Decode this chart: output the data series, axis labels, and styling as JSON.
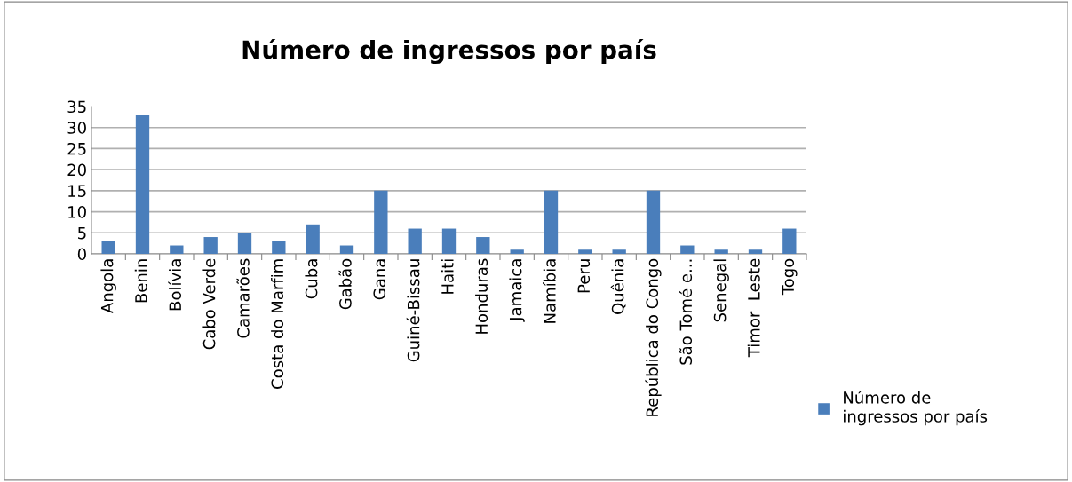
{
  "chart_data": {
    "type": "bar",
    "title": "Número de ingressos por país",
    "categories": [
      "Angola",
      "Benin",
      "Bolívia",
      "Cabo Verde",
      "Camarões",
      "Costa do Marfim",
      "Cuba",
      "Gabão",
      "Gana",
      "Guiné-Bissau",
      "Haiti",
      "Honduras",
      "Jamaica",
      "Namíbia",
      "Peru",
      "Quênia",
      "República do Congo",
      "São Tomé e...",
      "Senegal",
      "Timor  Leste",
      "Togo"
    ],
    "series": [
      {
        "name": "Número de ingressos por país",
        "color": "#4a7ebb",
        "values": [
          3,
          33,
          2,
          4,
          5,
          3,
          7,
          2,
          15,
          6,
          6,
          4,
          1,
          15,
          1,
          1,
          15,
          2,
          1,
          1,
          6
        ]
      }
    ],
    "ylim": [
      0,
      35
    ],
    "yticks": [
      0,
      5,
      10,
      15,
      20,
      25,
      30,
      35
    ],
    "grid": "y",
    "legend": "right"
  }
}
